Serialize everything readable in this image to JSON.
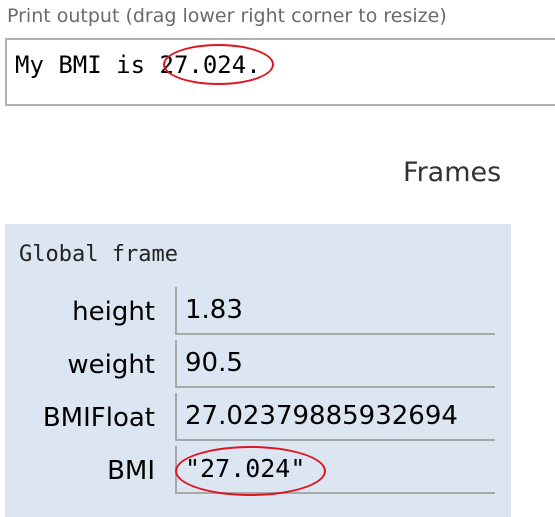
{
  "print_output": {
    "label": "Print output (drag lower right corner to resize)",
    "text": "My BMI is 27.024."
  },
  "frames": {
    "heading": "Frames",
    "global_frame": {
      "title": "Global frame",
      "variables": [
        {
          "name": "height",
          "value": "1.83"
        },
        {
          "name": "weight",
          "value": "90.5"
        },
        {
          "name": "BMIFloat",
          "value": "27.02379885932694"
        },
        {
          "name": "BMI",
          "value": "\"27.024\""
        }
      ]
    }
  },
  "colors": {
    "annotation": "#e0141e",
    "frame_background": "#dce5f2"
  }
}
